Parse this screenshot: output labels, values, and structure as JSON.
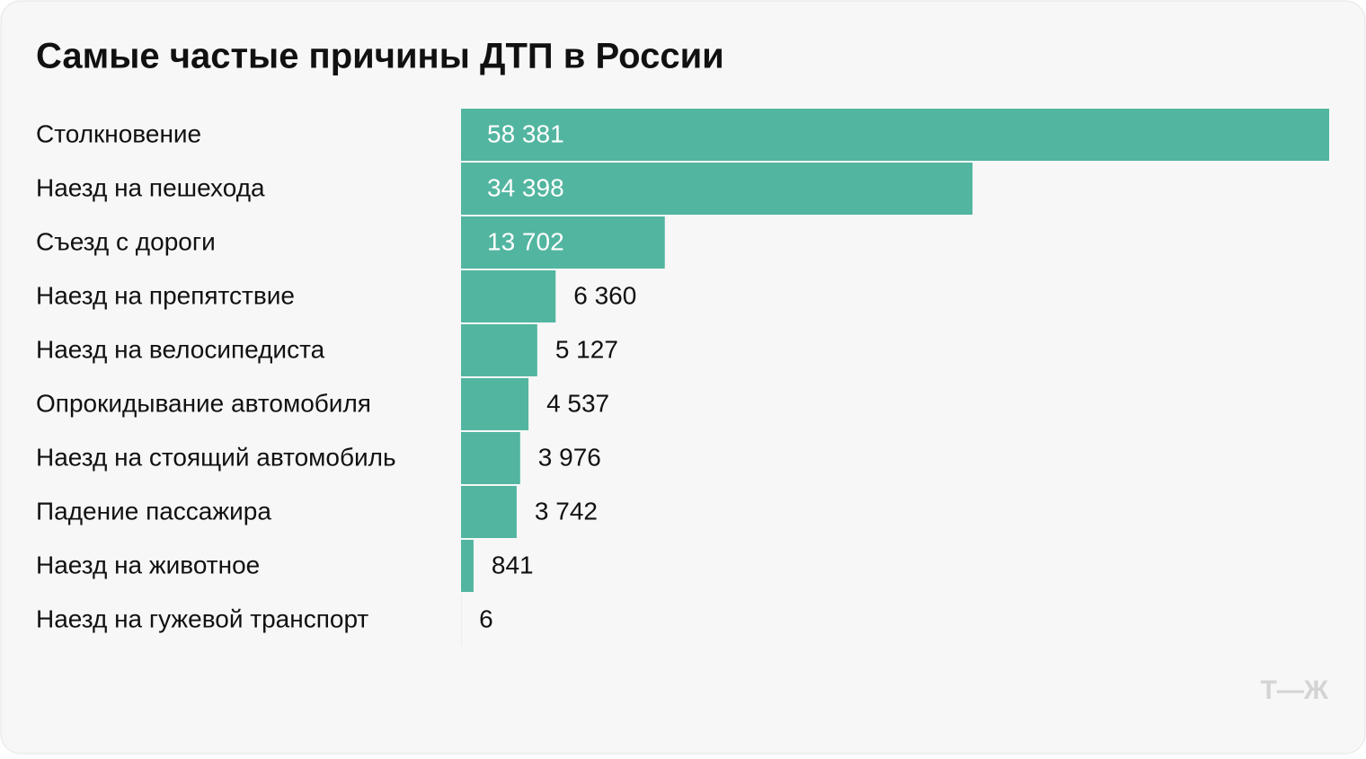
{
  "chart_data": {
    "type": "bar",
    "orientation": "horizontal",
    "title": "Самые частые причины ДТП в России",
    "categories": [
      "Столкновение",
      "Наезд на пешехода",
      "Съезд с дороги",
      "Наезд на препятствие",
      "Наезд на велосипедиста",
      "Опрокидывание автомобиля",
      "Наезд на стоящий автомобиль",
      "Падение пассажира",
      "Наезд на животное",
      "Наезд на гужевой транспорт"
    ],
    "values": [
      58381,
      34398,
      13702,
      6360,
      5127,
      4537,
      3976,
      3742,
      841,
      6
    ],
    "value_labels": [
      "58 381",
      "34 398",
      "13 702",
      "6 360",
      "5 127",
      "4 537",
      "3 976",
      "3 742",
      "841",
      "6"
    ],
    "color": "#52b5a0",
    "logo": "Т—Ж"
  }
}
